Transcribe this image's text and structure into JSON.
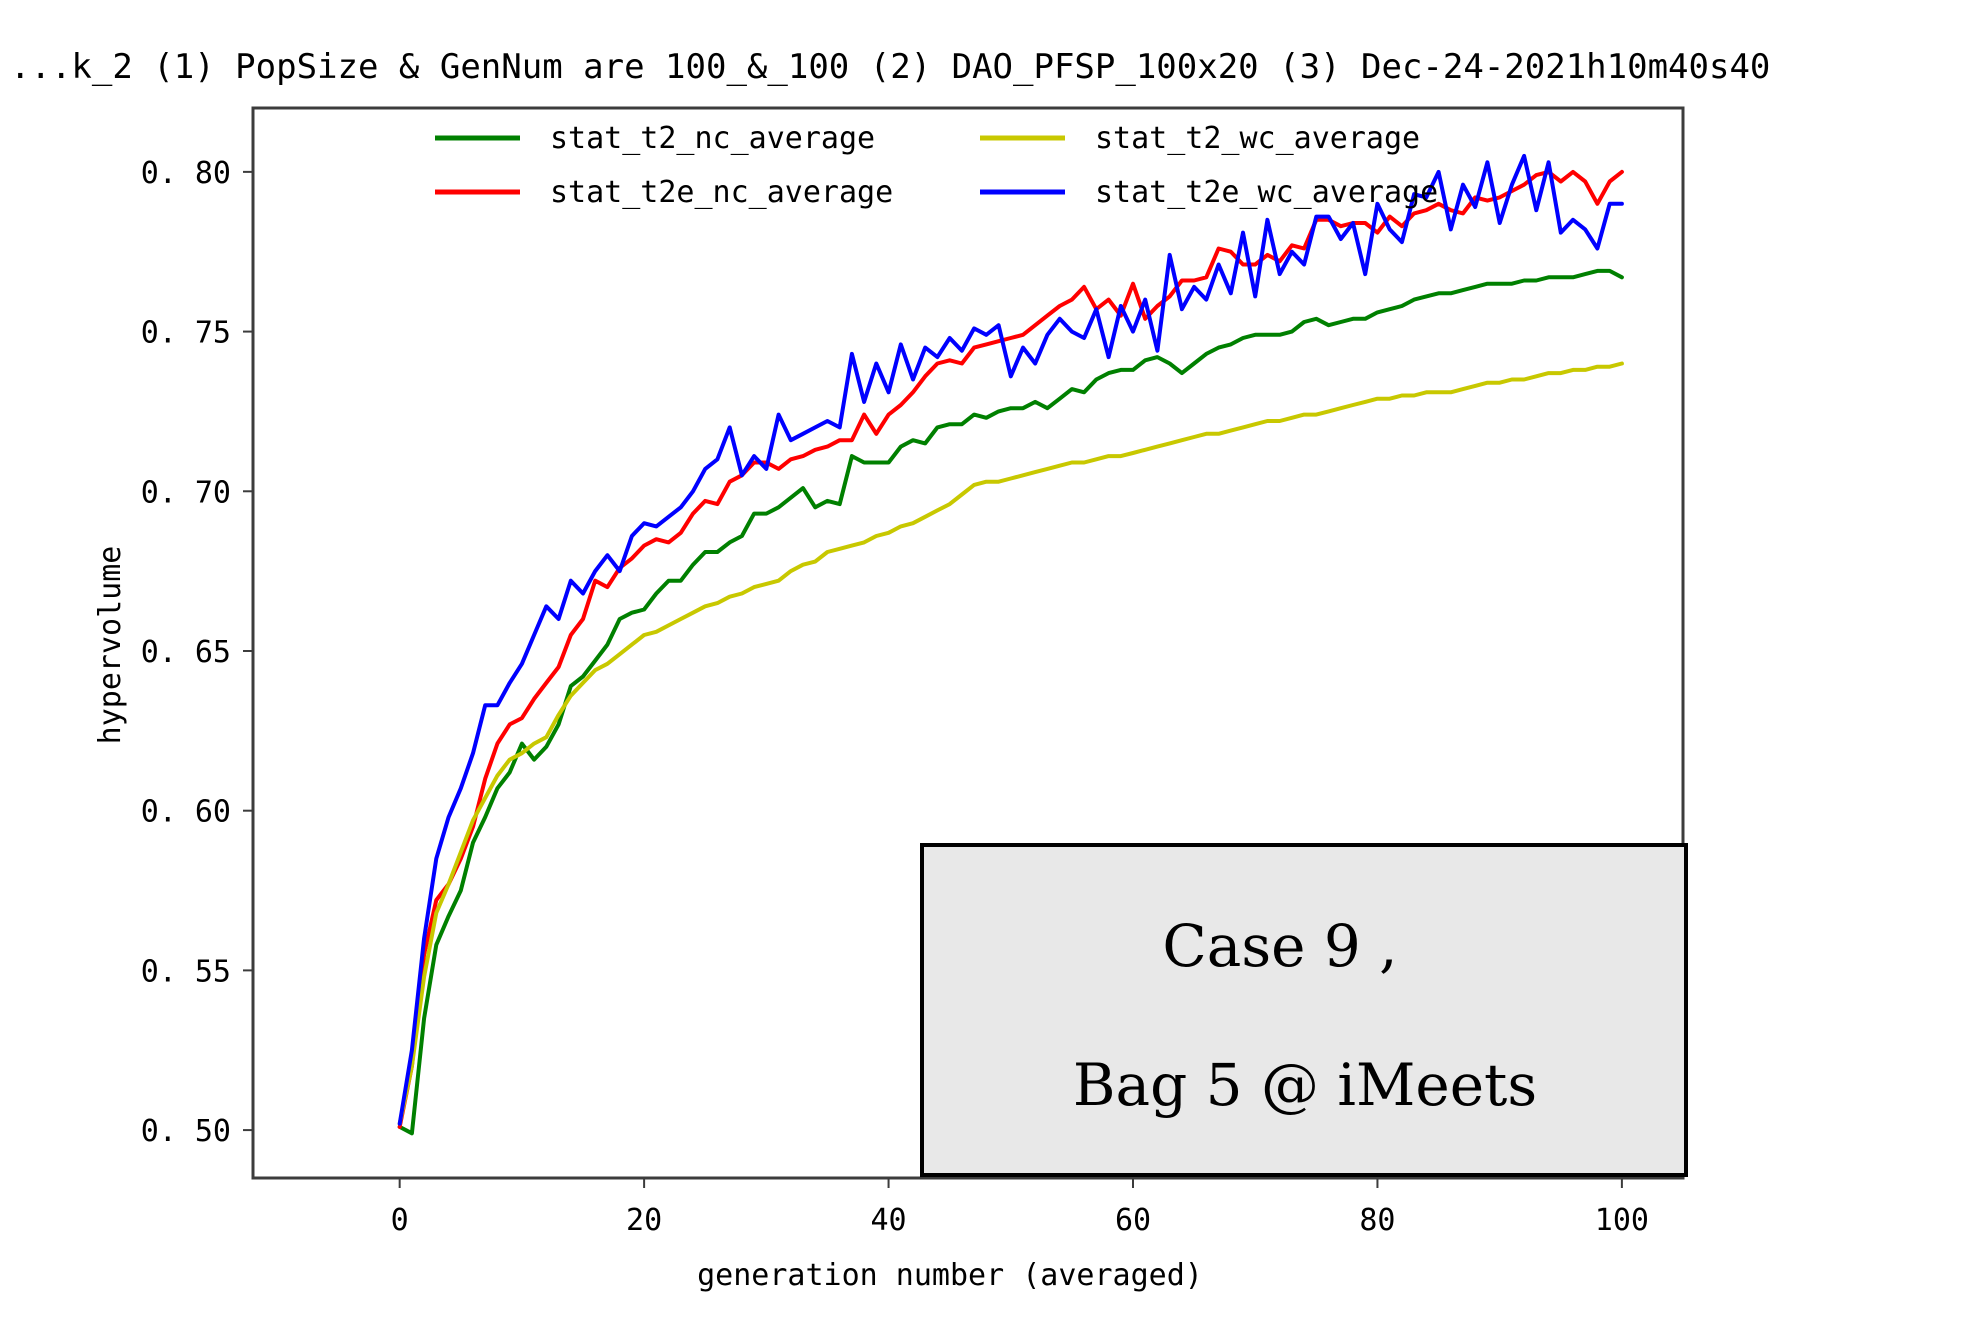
{
  "chart_data": {
    "type": "line",
    "title": "...k_2 (1) PopSize & GenNum are 100_&_100 (2) DAO_PFSP_100x20 (3) Dec-24-2021h10m40s40",
    "xlabel": "generation number (averaged)",
    "ylabel": "hypervolume",
    "xlim": [
      -12,
      105
    ],
    "ylim": [
      0.485,
      0.82
    ],
    "x_ticks": [
      0,
      20,
      40,
      60,
      80,
      100
    ],
    "x_tick_labels": [
      "0",
      "20",
      "40",
      "60",
      "80",
      "100"
    ],
    "y_ticks": [
      0.5,
      0.55,
      0.6,
      0.65,
      0.7,
      0.75,
      0.8
    ],
    "y_tick_labels": [
      "0.50",
      "0.55",
      "0.60",
      "0.65",
      "0.70",
      "0.75",
      "0.80"
    ],
    "grid": false,
    "legend_position": "top",
    "series": [
      {
        "name": "stat_t2_nc_average",
        "color": "#008000",
        "x": [
          0,
          1,
          2,
          3,
          4,
          5,
          6,
          7,
          8,
          9,
          10,
          11,
          12,
          13,
          14,
          15,
          16,
          17,
          18,
          19,
          20,
          21,
          22,
          23,
          24,
          25,
          26,
          27,
          28,
          29,
          30,
          31,
          32,
          33,
          34,
          35,
          36,
          37,
          38,
          39,
          40,
          41,
          42,
          43,
          44,
          45,
          46,
          47,
          48,
          49,
          50,
          51,
          52,
          53,
          54,
          55,
          56,
          57,
          58,
          59,
          60,
          61,
          62,
          63,
          64,
          65,
          66,
          67,
          68,
          69,
          70,
          71,
          72,
          73,
          74,
          75,
          76,
          77,
          78,
          79,
          80,
          81,
          82,
          83,
          84,
          85,
          86,
          87,
          88,
          89,
          90,
          91,
          92,
          93,
          94,
          95,
          96,
          97,
          98,
          99,
          100
        ],
        "values": [
          0.501,
          0.499,
          0.535,
          0.558,
          0.567,
          0.575,
          0.59,
          0.598,
          0.607,
          0.612,
          0.621,
          0.616,
          0.62,
          0.627,
          0.639,
          0.642,
          0.647,
          0.652,
          0.66,
          0.662,
          0.663,
          0.668,
          0.672,
          0.672,
          0.677,
          0.681,
          0.681,
          0.684,
          0.686,
          0.693,
          0.693,
          0.695,
          0.698,
          0.701,
          0.695,
          0.697,
          0.696,
          0.711,
          0.709,
          0.709,
          0.709,
          0.714,
          0.716,
          0.715,
          0.72,
          0.721,
          0.721,
          0.724,
          0.723,
          0.725,
          0.726,
          0.726,
          0.728,
          0.726,
          0.729,
          0.732,
          0.731,
          0.735,
          0.737,
          0.738,
          0.738,
          0.741,
          0.742,
          0.74,
          0.737,
          0.74,
          0.743,
          0.745,
          0.746,
          0.748,
          0.749,
          0.749,
          0.749,
          0.75,
          0.753,
          0.754,
          0.752,
          0.753,
          0.754,
          0.754,
          0.756,
          0.757,
          0.758,
          0.76,
          0.761,
          0.762,
          0.762,
          0.763,
          0.764,
          0.765,
          0.765,
          0.765,
          0.766,
          0.766,
          0.767,
          0.767,
          0.767,
          0.768,
          0.769,
          0.769,
          0.767
        ]
      },
      {
        "name": "stat_t2e_nc_average",
        "color": "#ff0000",
        "x": [
          0,
          1,
          2,
          3,
          4,
          5,
          6,
          7,
          8,
          9,
          10,
          11,
          12,
          13,
          14,
          15,
          16,
          17,
          18,
          19,
          20,
          21,
          22,
          23,
          24,
          25,
          26,
          27,
          28,
          29,
          30,
          31,
          32,
          33,
          34,
          35,
          36,
          37,
          38,
          39,
          40,
          41,
          42,
          43,
          44,
          45,
          46,
          47,
          48,
          49,
          50,
          51,
          52,
          53,
          54,
          55,
          56,
          57,
          58,
          59,
          60,
          61,
          62,
          63,
          64,
          65,
          66,
          67,
          68,
          69,
          70,
          71,
          72,
          73,
          74,
          75,
          76,
          77,
          78,
          79,
          80,
          81,
          82,
          83,
          84,
          85,
          86,
          87,
          88,
          89,
          90,
          91,
          92,
          93,
          94,
          95,
          96,
          97,
          98,
          99,
          100
        ],
        "values": [
          0.501,
          0.52,
          0.555,
          0.572,
          0.577,
          0.585,
          0.595,
          0.61,
          0.621,
          0.627,
          0.629,
          0.635,
          0.64,
          0.645,
          0.655,
          0.66,
          0.672,
          0.67,
          0.676,
          0.679,
          0.683,
          0.685,
          0.684,
          0.687,
          0.693,
          0.697,
          0.696,
          0.703,
          0.705,
          0.709,
          0.709,
          0.707,
          0.71,
          0.711,
          0.713,
          0.714,
          0.716,
          0.716,
          0.724,
          0.718,
          0.724,
          0.727,
          0.731,
          0.736,
          0.74,
          0.741,
          0.74,
          0.745,
          0.746,
          0.747,
          0.748,
          0.749,
          0.752,
          0.755,
          0.758,
          0.76,
          0.764,
          0.757,
          0.76,
          0.755,
          0.765,
          0.754,
          0.758,
          0.761,
          0.766,
          0.766,
          0.767,
          0.776,
          0.775,
          0.771,
          0.771,
          0.774,
          0.772,
          0.777,
          0.776,
          0.785,
          0.785,
          0.783,
          0.784,
          0.784,
          0.781,
          0.786,
          0.783,
          0.787,
          0.788,
          0.79,
          0.788,
          0.787,
          0.792,
          0.791,
          0.792,
          0.794,
          0.796,
          0.799,
          0.8,
          0.797,
          0.8,
          0.797,
          0.79,
          0.797,
          0.8
        ]
      },
      {
        "name": "stat_t2_wc_average",
        "color": "#c8c800",
        "x": [
          0,
          1,
          2,
          3,
          4,
          5,
          6,
          7,
          8,
          9,
          10,
          11,
          12,
          13,
          14,
          15,
          16,
          17,
          18,
          19,
          20,
          21,
          22,
          23,
          24,
          25,
          26,
          27,
          28,
          29,
          30,
          31,
          32,
          33,
          34,
          35,
          36,
          37,
          38,
          39,
          40,
          41,
          42,
          43,
          44,
          45,
          46,
          47,
          48,
          49,
          50,
          51,
          52,
          53,
          54,
          55,
          56,
          57,
          58,
          59,
          60,
          61,
          62,
          63,
          64,
          65,
          66,
          67,
          68,
          69,
          70,
          71,
          72,
          73,
          74,
          75,
          76,
          77,
          78,
          79,
          80,
          81,
          82,
          83,
          84,
          85,
          86,
          87,
          88,
          89,
          90,
          91,
          92,
          93,
          94,
          95,
          96,
          97,
          98,
          99,
          100
        ],
        "values": [
          0.502,
          0.52,
          0.548,
          0.568,
          0.577,
          0.587,
          0.597,
          0.604,
          0.611,
          0.616,
          0.618,
          0.621,
          0.623,
          0.63,
          0.636,
          0.64,
          0.644,
          0.646,
          0.649,
          0.652,
          0.655,
          0.656,
          0.658,
          0.66,
          0.662,
          0.664,
          0.665,
          0.667,
          0.668,
          0.67,
          0.671,
          0.672,
          0.675,
          0.677,
          0.678,
          0.681,
          0.682,
          0.683,
          0.684,
          0.686,
          0.687,
          0.689,
          0.69,
          0.692,
          0.694,
          0.696,
          0.699,
          0.702,
          0.703,
          0.703,
          0.704,
          0.705,
          0.706,
          0.707,
          0.708,
          0.709,
          0.709,
          0.71,
          0.711,
          0.711,
          0.712,
          0.713,
          0.714,
          0.715,
          0.716,
          0.717,
          0.718,
          0.718,
          0.719,
          0.72,
          0.721,
          0.722,
          0.722,
          0.723,
          0.724,
          0.724,
          0.725,
          0.726,
          0.727,
          0.728,
          0.729,
          0.729,
          0.73,
          0.73,
          0.731,
          0.731,
          0.731,
          0.732,
          0.733,
          0.734,
          0.734,
          0.735,
          0.735,
          0.736,
          0.737,
          0.737,
          0.738,
          0.738,
          0.739,
          0.739,
          0.74
        ]
      },
      {
        "name": "stat_t2e_wc_average",
        "color": "#0000ff",
        "x": [
          0,
          1,
          2,
          3,
          4,
          5,
          6,
          7,
          8,
          9,
          10,
          11,
          12,
          13,
          14,
          15,
          16,
          17,
          18,
          19,
          20,
          21,
          22,
          23,
          24,
          25,
          26,
          27,
          28,
          29,
          30,
          31,
          32,
          33,
          34,
          35,
          36,
          37,
          38,
          39,
          40,
          41,
          42,
          43,
          44,
          45,
          46,
          47,
          48,
          49,
          50,
          51,
          52,
          53,
          54,
          55,
          56,
          57,
          58,
          59,
          60,
          61,
          62,
          63,
          64,
          65,
          66,
          67,
          68,
          69,
          70,
          71,
          72,
          73,
          74,
          75,
          76,
          77,
          78,
          79,
          80,
          81,
          82,
          83,
          84,
          85,
          86,
          87,
          88,
          89,
          90,
          91,
          92,
          93,
          94,
          95,
          96,
          97,
          98,
          99,
          100
        ],
        "values": [
          0.502,
          0.525,
          0.56,
          0.585,
          0.598,
          0.607,
          0.618,
          0.633,
          0.633,
          0.64,
          0.646,
          0.655,
          0.664,
          0.66,
          0.672,
          0.668,
          0.675,
          0.68,
          0.675,
          0.686,
          0.69,
          0.689,
          0.692,
          0.695,
          0.7,
          0.707,
          0.71,
          0.72,
          0.705,
          0.711,
          0.707,
          0.724,
          0.716,
          0.718,
          0.72,
          0.722,
          0.72,
          0.743,
          0.728,
          0.74,
          0.731,
          0.746,
          0.735,
          0.745,
          0.742,
          0.748,
          0.744,
          0.751,
          0.749,
          0.752,
          0.736,
          0.745,
          0.74,
          0.749,
          0.754,
          0.75,
          0.748,
          0.757,
          0.742,
          0.758,
          0.75,
          0.76,
          0.744,
          0.774,
          0.757,
          0.764,
          0.76,
          0.771,
          0.762,
          0.781,
          0.761,
          0.785,
          0.768,
          0.775,
          0.771,
          0.786,
          0.786,
          0.779,
          0.784,
          0.768,
          0.79,
          0.782,
          0.778,
          0.793,
          0.792,
          0.8,
          0.782,
          0.796,
          0.789,
          0.803,
          0.784,
          0.796,
          0.805,
          0.788,
          0.803,
          0.781,
          0.785,
          0.782,
          0.776,
          0.79,
          0.79
        ]
      }
    ],
    "annotation": {
      "line1": "Case 9 ,",
      "line2": "Bag 5 @ iMeets"
    }
  }
}
